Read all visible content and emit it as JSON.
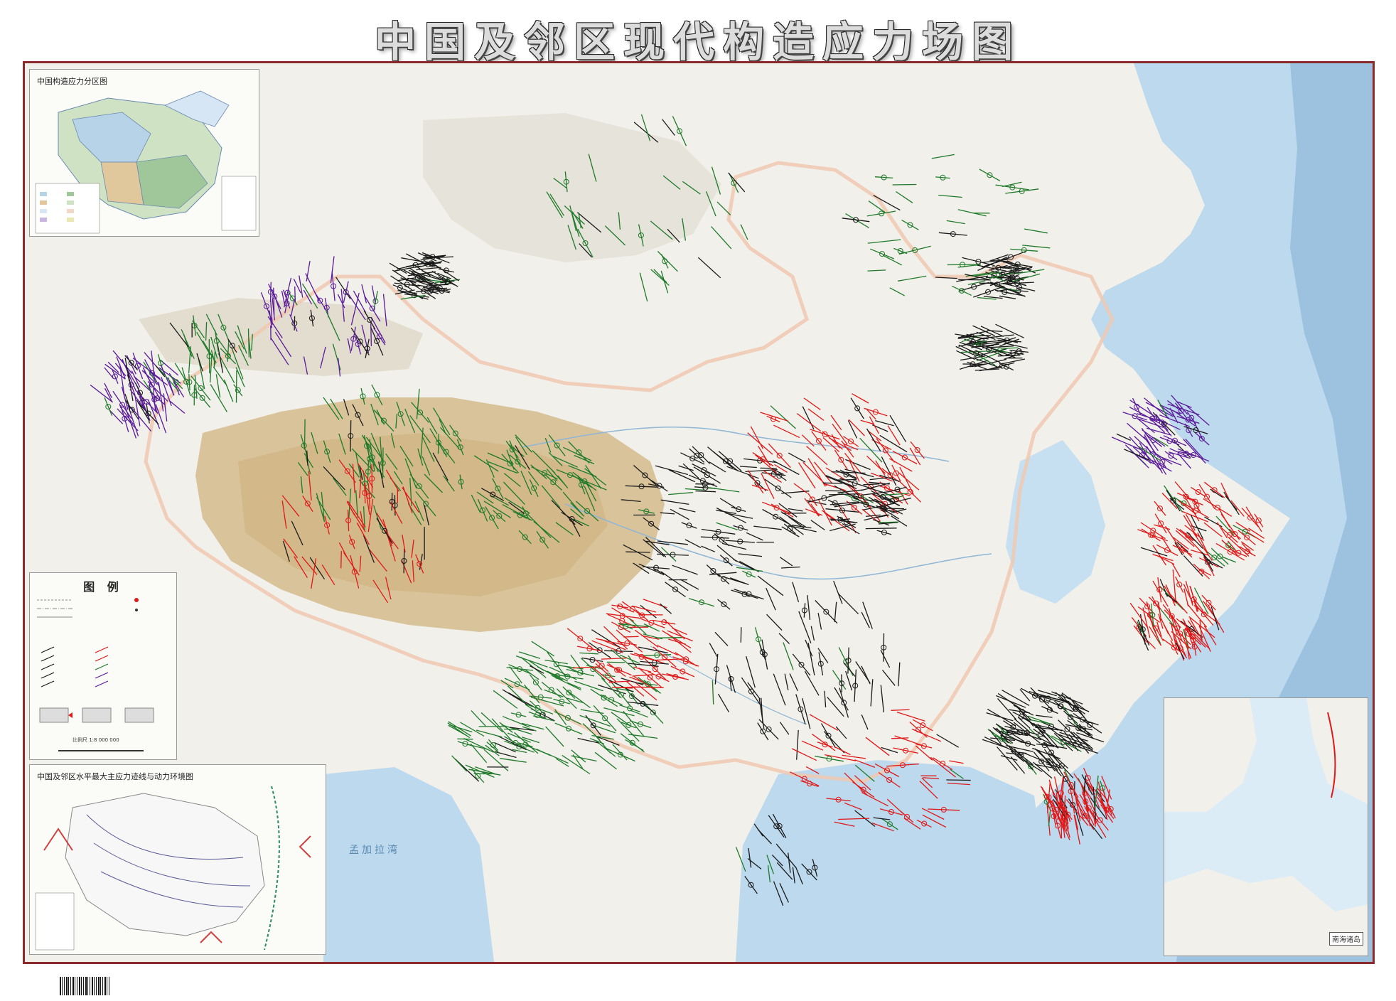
{
  "title": "中国及邻区现代构造应力场图",
  "inset_stress_zones": {
    "title": "中国构造应力分区图"
  },
  "inset_dynamics": {
    "title": "中国及邻区水平最大主应力迹线与动力环境图"
  },
  "legend": {
    "title": "图 例",
    "scale_text": "比例尺 1:8 000 000"
  },
  "south_china_sea": {
    "label": "南海诸岛"
  },
  "map_labels": {
    "bay_of_bengal": "孟加拉湾"
  },
  "colors": {
    "frame": "#8a2a2a",
    "sea": "#bcd9ee",
    "deep_sea": "#8fb6d6",
    "land": "#f1f0ea",
    "plateau": "#d9c39a",
    "mountain": "#e6e3da",
    "stress_black": "#1a1a1a",
    "stress_red": "#e01818",
    "stress_green": "#1f7a2a",
    "stress_purple": "#5a1a9a",
    "border": "#f0c8b0"
  },
  "icons": [
    "barcode-icon",
    "north-arrow-icon"
  ]
}
